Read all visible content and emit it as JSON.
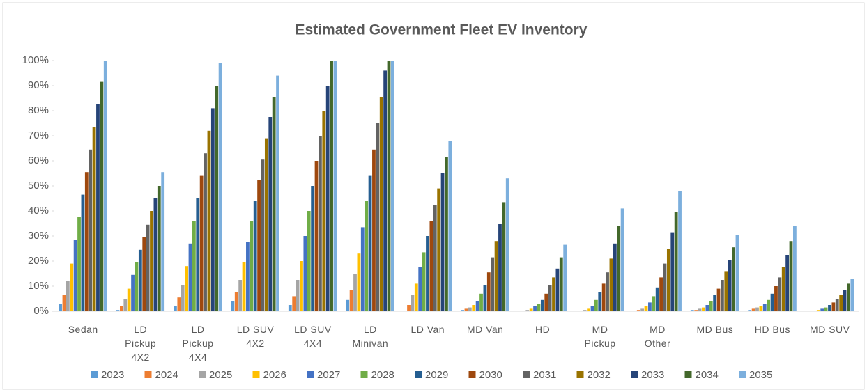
{
  "chart_data": {
    "type": "bar",
    "title": "Estimated Government Fleet EV Inventory",
    "categories": [
      "Sedan",
      "LD Pickup 4X2",
      "LD Pickup 4X4",
      "LD SUV 4X2",
      "LD SUV 4X4",
      "LD Minivan",
      "LD Van",
      "MD Van",
      "HD",
      "MD Pickup",
      "MD Other",
      "MD Bus",
      "HD Bus",
      "MD SUV"
    ],
    "series": [
      {
        "name": "2023",
        "color": "#5b9bd5",
        "values": [
          3,
          0.5,
          2,
          4,
          2.5,
          4.5,
          0,
          0.5,
          0,
          0,
          0,
          0.5,
          0.5,
          0
        ]
      },
      {
        "name": "2024",
        "color": "#ed7d31",
        "values": [
          6.5,
          2,
          5.5,
          7.5,
          6,
          8.5,
          2.5,
          1,
          0,
          0,
          0.5,
          0.5,
          1,
          0
        ]
      },
      {
        "name": "2025",
        "color": "#a5a5a5",
        "values": [
          12,
          5,
          10.5,
          12.5,
          12.5,
          15,
          6.5,
          1.5,
          0.5,
          0.5,
          1,
          1,
          1.5,
          0
        ]
      },
      {
        "name": "2026",
        "color": "#ffc000",
        "values": [
          19,
          9,
          18,
          19.5,
          20,
          23,
          11,
          2.5,
          1,
          1,
          2,
          1.5,
          2,
          0.5
        ]
      },
      {
        "name": "2027",
        "color": "#4472c4",
        "values": [
          28.5,
          14.5,
          27,
          27.5,
          30,
          33.5,
          17.5,
          4,
          2,
          2,
          3.5,
          2.5,
          3,
          1
        ]
      },
      {
        "name": "2028",
        "color": "#70ad47",
        "values": [
          37.5,
          19.5,
          36,
          36,
          40,
          44,
          23.5,
          7,
          3,
          4.5,
          6,
          4,
          4.5,
          1.5
        ]
      },
      {
        "name": "2029",
        "color": "#255e91",
        "values": [
          46.5,
          24.5,
          45,
          44,
          50,
          54,
          30,
          10.5,
          4.5,
          7.5,
          9.5,
          6.5,
          7,
          2.5
        ]
      },
      {
        "name": "2030",
        "color": "#9e480e",
        "values": [
          55.5,
          29.5,
          54,
          52.5,
          60,
          64.5,
          36,
          15.5,
          7,
          11,
          13.5,
          9,
          10,
          3.5
        ]
      },
      {
        "name": "2031",
        "color": "#636363",
        "values": [
          64.5,
          34.5,
          63,
          60.5,
          70,
          75,
          42.5,
          21.5,
          10.5,
          15.5,
          19,
          12.5,
          13.5,
          5
        ]
      },
      {
        "name": "2032",
        "color": "#997300",
        "values": [
          73.5,
          40,
          72,
          69,
          80,
          85.5,
          49,
          28,
          13.5,
          21,
          25,
          16,
          17.5,
          6.5
        ]
      },
      {
        "name": "2033",
        "color": "#264478",
        "values": [
          82.5,
          45,
          81,
          77.5,
          90,
          96,
          55,
          35,
          17,
          27,
          31.5,
          20.5,
          22.5,
          8.5
        ]
      },
      {
        "name": "2034",
        "color": "#43682b",
        "values": [
          91.5,
          50,
          90,
          85.5,
          100,
          100,
          61.5,
          43.5,
          21.5,
          34,
          39.5,
          25.5,
          28,
          11
        ]
      },
      {
        "name": "2035",
        "color": "#7cafdd",
        "values": [
          100,
          55.5,
          99,
          94,
          100,
          100,
          68,
          53,
          26.5,
          41,
          48,
          30.5,
          34,
          13
        ]
      }
    ],
    "ylim": [
      0,
      100
    ],
    "yticks": [
      {
        "value": 0,
        "label": "0%"
      },
      {
        "value": 10,
        "label": "10%"
      },
      {
        "value": 20,
        "label": "20%"
      },
      {
        "value": 30,
        "label": "30%"
      },
      {
        "value": 40,
        "label": "40%"
      },
      {
        "value": 50,
        "label": "50%"
      },
      {
        "value": 60,
        "label": "60%"
      },
      {
        "value": 70,
        "label": "70%"
      },
      {
        "value": 80,
        "label": "80%"
      },
      {
        "value": 90,
        "label": "90%"
      },
      {
        "value": 100,
        "label": "100%"
      }
    ],
    "legend": "bottom"
  }
}
